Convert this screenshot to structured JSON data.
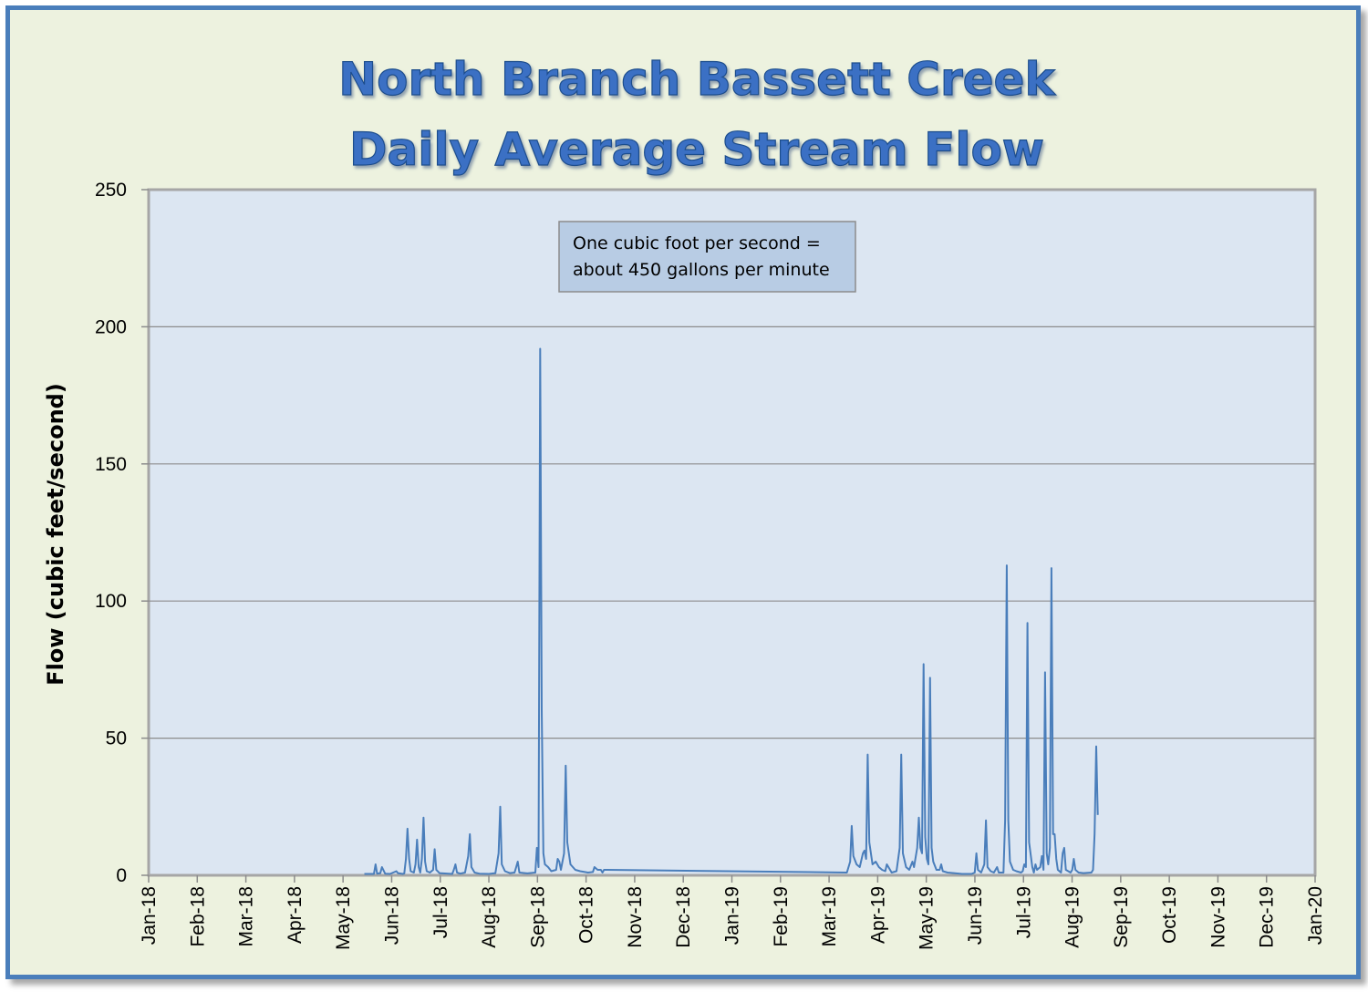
{
  "chart_data": {
    "type": "line",
    "title": [
      "North Branch Bassett Creek",
      "Daily Average Stream Flow"
    ],
    "xlabel": "",
    "ylabel": "Flow (cubic feet/second)",
    "ylim": [
      0,
      250
    ],
    "yticks": [
      0,
      50,
      100,
      150,
      200,
      250
    ],
    "xlim": [
      "2018-01-01",
      "2020-01-01"
    ],
    "xticks": [
      "Jan-18",
      "Feb-18",
      "Mar-18",
      "Apr-18",
      "May-18",
      "Jun-18",
      "Jul-18",
      "Aug-18",
      "Sep-18",
      "Oct-18",
      "Nov-18",
      "Dec-18",
      "Jan-19",
      "Feb-19",
      "Mar-19",
      "Apr-19",
      "May-19",
      "Jun-19",
      "Jul-19",
      "Aug-19",
      "Sep-19",
      "Oct-19",
      "Nov-19",
      "Dec-19",
      "Jan-20"
    ],
    "grid": true,
    "note": [
      "One cubic foot per second =",
      "about 450 gallons per minute"
    ],
    "colors": {
      "line": "#4a7ebb",
      "plot_bg": "#dce6f2",
      "page_bg": "#edf2df",
      "title": "#3a6fc4",
      "note_bg": "#b8cce4"
    },
    "series": [
      {
        "points": [
          [
            "2018-05-16",
            0.5
          ],
          [
            "2018-05-22",
            0.5
          ],
          [
            "2018-05-23",
            4
          ],
          [
            "2018-05-24",
            0.6
          ],
          [
            "2018-05-26",
            0.8
          ],
          [
            "2018-05-27",
            3
          ],
          [
            "2018-05-29",
            0.6
          ],
          [
            "2018-06-01",
            0.5
          ],
          [
            "2018-06-03",
            1
          ],
          [
            "2018-06-05",
            1.5
          ],
          [
            "2018-06-06",
            0.8
          ],
          [
            "2018-06-09",
            0.5
          ],
          [
            "2018-06-10",
            0.7
          ],
          [
            "2018-06-11",
            6
          ],
          [
            "2018-06-12",
            17
          ],
          [
            "2018-06-13",
            6
          ],
          [
            "2018-06-14",
            1.5
          ],
          [
            "2018-06-16",
            1
          ],
          [
            "2018-06-17",
            4
          ],
          [
            "2018-06-18",
            13
          ],
          [
            "2018-06-19",
            3
          ],
          [
            "2018-06-20",
            1
          ],
          [
            "2018-06-21",
            6
          ],
          [
            "2018-06-22",
            21
          ],
          [
            "2018-06-23",
            5
          ],
          [
            "2018-06-24",
            1.5
          ],
          [
            "2018-06-26",
            1
          ],
          [
            "2018-06-28",
            2
          ],
          [
            "2018-06-29",
            9.5
          ],
          [
            "2018-06-30",
            2
          ],
          [
            "2018-07-02",
            0.8
          ],
          [
            "2018-07-10",
            0.5
          ],
          [
            "2018-07-11",
            2
          ],
          [
            "2018-07-12",
            4
          ],
          [
            "2018-07-13",
            1
          ],
          [
            "2018-07-15",
            0.6
          ],
          [
            "2018-07-18",
            1
          ],
          [
            "2018-07-20",
            7
          ],
          [
            "2018-07-21",
            15
          ],
          [
            "2018-07-22",
            3
          ],
          [
            "2018-07-24",
            1
          ],
          [
            "2018-07-27",
            0.6
          ],
          [
            "2018-08-02",
            0.5
          ],
          [
            "2018-08-06",
            0.8
          ],
          [
            "2018-08-08",
            8
          ],
          [
            "2018-08-09",
            25
          ],
          [
            "2018-08-10",
            4
          ],
          [
            "2018-08-12",
            1.5
          ],
          [
            "2018-08-15",
            0.8
          ],
          [
            "2018-08-18",
            1
          ],
          [
            "2018-08-19",
            3
          ],
          [
            "2018-08-20",
            5
          ],
          [
            "2018-08-21",
            1
          ],
          [
            "2018-08-26",
            0.7
          ],
          [
            "2018-08-31",
            1
          ],
          [
            "2018-09-01",
            10
          ],
          [
            "2018-09-02",
            3
          ],
          [
            "2018-09-03",
            192
          ],
          [
            "2018-09-04",
            60
          ],
          [
            "2018-09-05",
            8
          ],
          [
            "2018-09-06",
            4
          ],
          [
            "2018-09-08",
            3
          ],
          [
            "2018-09-10",
            1.5
          ],
          [
            "2018-09-13",
            2
          ],
          [
            "2018-09-14",
            6
          ],
          [
            "2018-09-15",
            5
          ],
          [
            "2018-09-16",
            2
          ],
          [
            "2018-09-18",
            8
          ],
          [
            "2018-09-19",
            40
          ],
          [
            "2018-09-20",
            12
          ],
          [
            "2018-09-22",
            4
          ],
          [
            "2018-09-25",
            2
          ],
          [
            "2018-09-28",
            1.5
          ],
          [
            "2018-10-03",
            1
          ],
          [
            "2018-10-06",
            1.2
          ],
          [
            "2018-10-07",
            3
          ],
          [
            "2018-10-09",
            2
          ],
          [
            "2018-10-11",
            2
          ],
          [
            "2018-10-12",
            1
          ],
          [
            "2018-10-13",
            2
          ],
          [
            "2018-10-15",
            2
          ],
          [
            "2019-03-14",
            1
          ],
          [
            "2019-03-16",
            5
          ],
          [
            "2019-03-17",
            18
          ],
          [
            "2019-03-18",
            7
          ],
          [
            "2019-03-20",
            4
          ],
          [
            "2019-03-22",
            3
          ],
          [
            "2019-03-24",
            8
          ],
          [
            "2019-03-25",
            9
          ],
          [
            "2019-03-26",
            6
          ],
          [
            "2019-03-27",
            44
          ],
          [
            "2019-03-28",
            12
          ],
          [
            "2019-03-30",
            4
          ],
          [
            "2019-04-01",
            5
          ],
          [
            "2019-04-03",
            3
          ],
          [
            "2019-04-05",
            2
          ],
          [
            "2019-04-07",
            1.5
          ],
          [
            "2019-04-08",
            4
          ],
          [
            "2019-04-09",
            3
          ],
          [
            "2019-04-11",
            1
          ],
          [
            "2019-04-14",
            1.5
          ],
          [
            "2019-04-16",
            10
          ],
          [
            "2019-04-17",
            44
          ],
          [
            "2019-04-18",
            8
          ],
          [
            "2019-04-20",
            3
          ],
          [
            "2019-04-22",
            2
          ],
          [
            "2019-04-24",
            5
          ],
          [
            "2019-04-25",
            3
          ],
          [
            "2019-04-27",
            10
          ],
          [
            "2019-04-28",
            21
          ],
          [
            "2019-04-29",
            10
          ],
          [
            "2019-04-30",
            8
          ],
          [
            "2019-05-01",
            77
          ],
          [
            "2019-05-02",
            14
          ],
          [
            "2019-05-03",
            6
          ],
          [
            "2019-05-04",
            4
          ],
          [
            "2019-05-05",
            72
          ],
          [
            "2019-05-06",
            10
          ],
          [
            "2019-05-07",
            5
          ],
          [
            "2019-05-09",
            2
          ],
          [
            "2019-05-11",
            2
          ],
          [
            "2019-05-12",
            4
          ],
          [
            "2019-05-13",
            1.5
          ],
          [
            "2019-05-16",
            1
          ],
          [
            "2019-05-20",
            0.8
          ],
          [
            "2019-05-25",
            0.5
          ],
          [
            "2019-05-31",
            0.5
          ],
          [
            "2019-06-02",
            1
          ],
          [
            "2019-06-03",
            8
          ],
          [
            "2019-06-04",
            2
          ],
          [
            "2019-06-06",
            1
          ],
          [
            "2019-06-08",
            4
          ],
          [
            "2019-06-09",
            20
          ],
          [
            "2019-06-10",
            3
          ],
          [
            "2019-06-12",
            1.5
          ],
          [
            "2019-06-14",
            1
          ],
          [
            "2019-06-16",
            3
          ],
          [
            "2019-06-17",
            1
          ],
          [
            "2019-06-20",
            1
          ],
          [
            "2019-06-21",
            20
          ],
          [
            "2019-06-22",
            113
          ],
          [
            "2019-06-23",
            20
          ],
          [
            "2019-06-24",
            5
          ],
          [
            "2019-06-26",
            2
          ],
          [
            "2019-06-28",
            1.5
          ],
          [
            "2019-07-01",
            1
          ],
          [
            "2019-07-02",
            1.5
          ],
          [
            "2019-07-03",
            4
          ],
          [
            "2019-07-04",
            3
          ],
          [
            "2019-07-05",
            92
          ],
          [
            "2019-07-06",
            12
          ],
          [
            "2019-07-08",
            3
          ],
          [
            "2019-07-09",
            1
          ],
          [
            "2019-07-10",
            4
          ],
          [
            "2019-07-11",
            2
          ],
          [
            "2019-07-13",
            3
          ],
          [
            "2019-07-14",
            7
          ],
          [
            "2019-07-15",
            2
          ],
          [
            "2019-07-16",
            74
          ],
          [
            "2019-07-17",
            8
          ],
          [
            "2019-07-18",
            4
          ],
          [
            "2019-07-19",
            10
          ],
          [
            "2019-07-20",
            112
          ],
          [
            "2019-07-21",
            15
          ],
          [
            "2019-07-22",
            15
          ],
          [
            "2019-07-23",
            6
          ],
          [
            "2019-07-24",
            2
          ],
          [
            "2019-07-26",
            1
          ],
          [
            "2019-07-27",
            8
          ],
          [
            "2019-07-28",
            10
          ],
          [
            "2019-07-29",
            2
          ],
          [
            "2019-08-01",
            1
          ],
          [
            "2019-08-02",
            2
          ],
          [
            "2019-08-03",
            6
          ],
          [
            "2019-08-04",
            2
          ],
          [
            "2019-08-06",
            1
          ],
          [
            "2019-08-09",
            0.8
          ],
          [
            "2019-08-14",
            1
          ],
          [
            "2019-08-15",
            2
          ],
          [
            "2019-08-16",
            15
          ],
          [
            "2019-08-17",
            47
          ],
          [
            "2019-08-18",
            22
          ]
        ]
      }
    ]
  }
}
